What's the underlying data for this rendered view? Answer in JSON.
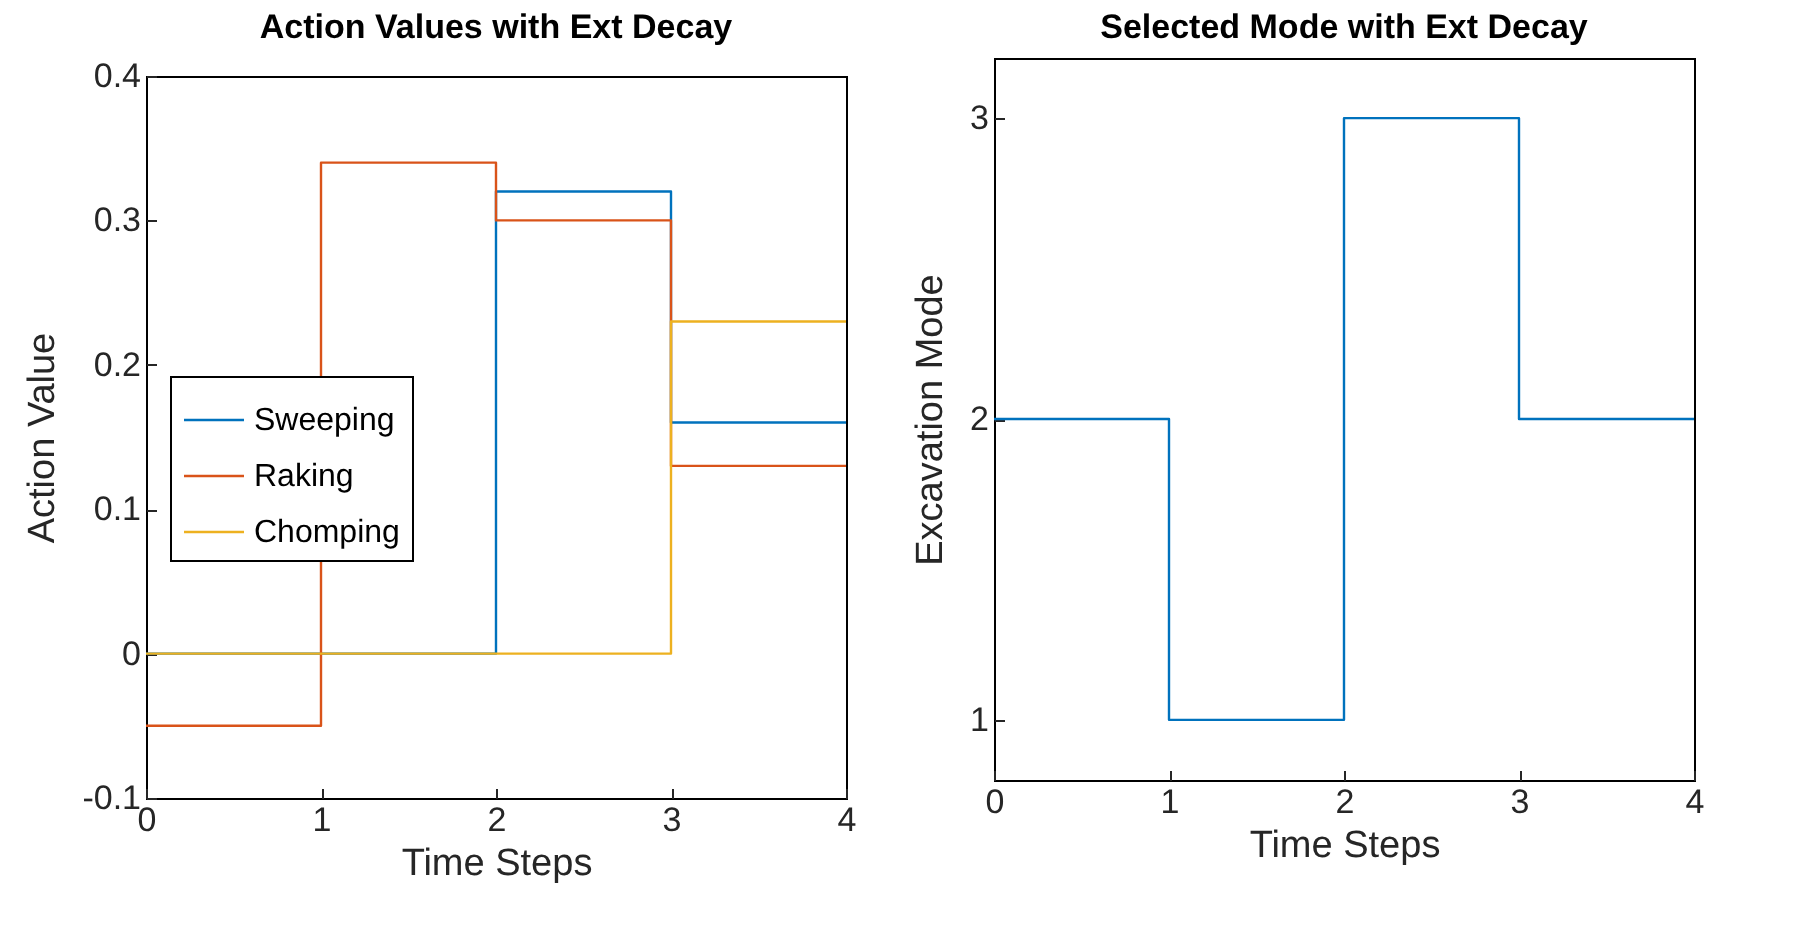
{
  "chart_data": [
    {
      "type": "step",
      "title": "Action Values with Ext Decay",
      "xlabel": "Time Steps",
      "ylabel": "Action Value",
      "x": [
        0,
        1,
        2,
        3,
        4
      ],
      "xlim": [
        0,
        4
      ],
      "xticks": [
        0,
        1,
        2,
        3,
        4
      ],
      "ylim": [
        -0.1,
        0.4
      ],
      "yticks": [
        -0.1,
        0,
        0.1,
        0.2,
        0.3,
        0.4
      ],
      "legend": "left",
      "grid": false,
      "series": [
        {
          "name": "Sweeping",
          "color": "#0072bd",
          "values": [
            0,
            0,
            0.32,
            0.16,
            0.16
          ]
        },
        {
          "name": "Raking",
          "color": "#d95319",
          "values": [
            -0.05,
            0.34,
            0.3,
            0.13,
            0.13
          ]
        },
        {
          "name": "Chomping",
          "color": "#edb120",
          "values": [
            0,
            0,
            0,
            0.23,
            0.23
          ]
        }
      ]
    },
    {
      "type": "step",
      "title": "Selected Mode with Ext Decay",
      "xlabel": "Time Steps",
      "ylabel": "Excavation Mode",
      "x": [
        0,
        1,
        2,
        3,
        4
      ],
      "xlim": [
        0,
        4
      ],
      "xticks": [
        0,
        1,
        2,
        3,
        4
      ],
      "ylim": [
        0.8,
        3.2
      ],
      "yticks": [
        1,
        2,
        3
      ],
      "grid": false,
      "series": [
        {
          "color": "#0072bd",
          "values": [
            2,
            1,
            3,
            2,
            2
          ]
        }
      ]
    }
  ]
}
